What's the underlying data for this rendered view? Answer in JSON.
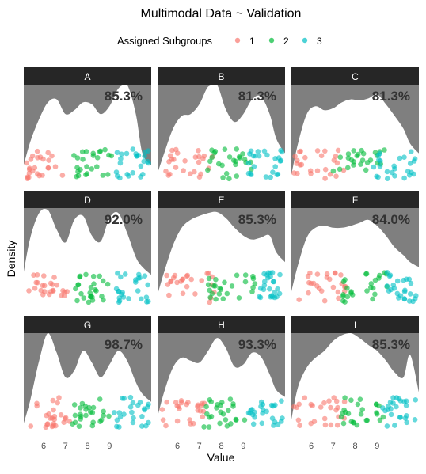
{
  "chart_data": {
    "type": "area",
    "title": "Multimodal Data ~ Validation",
    "xlabel": "Value",
    "ylabel": "Density",
    "xlim": [
      5.1,
      10.9
    ],
    "x_ticks": [
      6,
      7,
      8,
      9
    ],
    "legend": {
      "title": "Assigned Subgroups",
      "placement": "top",
      "entries": [
        {
          "label": "1",
          "color": "#F8766D"
        },
        {
          "label": "2",
          "color": "#00BA38"
        },
        {
          "label": "3",
          "color": "#00BFC4"
        }
      ]
    },
    "density_x": [
      5.1,
      5.4,
      5.8,
      6.2,
      6.6,
      7.0,
      7.4,
      7.8,
      8.2,
      8.6,
      9.0,
      9.4,
      9.8,
      10.2,
      10.5,
      10.9
    ],
    "panels": [
      {
        "label": "A",
        "accuracy": "85.3%",
        "density": [
          0.18,
          0.42,
          0.65,
          0.82,
          0.85,
          0.7,
          0.74,
          0.82,
          0.8,
          0.7,
          0.78,
          0.96,
          1.0,
          0.7,
          0.3,
          0.18
        ],
        "cluster_spans": [
          [
            5.2,
            7.0
          ],
          [
            7.3,
            9.1
          ],
          [
            9.3,
            10.8
          ]
        ]
      },
      {
        "label": "B",
        "accuracy": "81.3%",
        "density": [
          0.1,
          0.3,
          0.55,
          0.68,
          0.7,
          0.8,
          0.98,
          1.0,
          0.75,
          0.62,
          0.7,
          0.85,
          0.88,
          0.7,
          0.45,
          0.3
        ],
        "cluster_spans": [
          [
            5.4,
            7.6
          ],
          [
            7.2,
            9.5
          ],
          [
            9.2,
            10.8
          ]
        ]
      },
      {
        "label": "C",
        "accuracy": "81.3%",
        "density": [
          0.08,
          0.4,
          0.7,
          0.78,
          0.74,
          0.76,
          0.82,
          0.85,
          0.84,
          0.86,
          0.9,
          0.8,
          0.68,
          0.55,
          0.4,
          0.3
        ],
        "cluster_spans": [
          [
            5.2,
            7.5
          ],
          [
            7.0,
            9.4
          ],
          [
            8.8,
            10.8
          ]
        ]
      },
      {
        "label": "D",
        "accuracy": "92.0%",
        "density": [
          0.35,
          0.7,
          0.95,
          0.98,
          0.78,
          0.65,
          0.88,
          0.92,
          0.72,
          0.66,
          0.9,
          0.95,
          0.75,
          0.5,
          0.4,
          0.32
        ],
        "cluster_spans": [
          [
            5.3,
            7.1
          ],
          [
            7.3,
            9.0
          ],
          [
            9.3,
            10.8
          ]
        ]
      },
      {
        "label": "E",
        "accuracy": "85.3%",
        "density": [
          0.12,
          0.35,
          0.62,
          0.8,
          0.88,
          0.92,
          0.95,
          0.96,
          0.9,
          0.8,
          0.72,
          0.68,
          0.7,
          0.72,
          0.55,
          0.45
        ],
        "cluster_spans": [
          [
            5.4,
            7.8
          ],
          [
            7.4,
            9.6
          ],
          [
            9.6,
            10.8
          ]
        ]
      },
      {
        "label": "F",
        "accuracy": "84.0%",
        "density": [
          0.15,
          0.42,
          0.7,
          0.8,
          0.82,
          0.8,
          0.8,
          0.82,
          0.85,
          0.88,
          0.82,
          0.72,
          0.6,
          0.52,
          0.45,
          0.4
        ],
        "cluster_spans": [
          [
            5.3,
            7.6
          ],
          [
            7.2,
            9.6
          ],
          [
            9.4,
            10.8
          ]
        ]
      },
      {
        "label": "G",
        "accuracy": "98.7%",
        "density": [
          0.08,
          0.32,
          0.72,
          1.0,
          0.8,
          0.55,
          0.62,
          0.82,
          0.7,
          0.55,
          0.68,
          0.82,
          0.72,
          0.5,
          0.38,
          0.3
        ],
        "cluster_spans": [
          [
            5.3,
            7.2
          ],
          [
            7.3,
            9.0
          ],
          [
            9.2,
            10.8
          ]
        ]
      },
      {
        "label": "H",
        "accuracy": "93.3%",
        "density": [
          0.15,
          0.4,
          0.65,
          0.75,
          0.72,
          0.7,
          0.82,
          0.95,
          0.85,
          0.66,
          0.68,
          0.8,
          0.76,
          0.58,
          0.42,
          0.35
        ],
        "cluster_spans": [
          [
            5.2,
            7.3
          ],
          [
            7.2,
            9.2
          ],
          [
            9.0,
            10.8
          ]
        ]
      },
      {
        "label": "I",
        "accuracy": "85.3%",
        "density": [
          0.12,
          0.45,
          0.65,
          0.75,
          0.82,
          0.92,
          0.98,
          1.0,
          0.95,
          0.88,
          0.82,
          0.72,
          0.6,
          0.55,
          0.78,
          0.4
        ],
        "cluster_spans": [
          [
            5.2,
            7.6
          ],
          [
            7.3,
            9.4
          ],
          [
            9.2,
            10.8
          ]
        ]
      }
    ]
  }
}
